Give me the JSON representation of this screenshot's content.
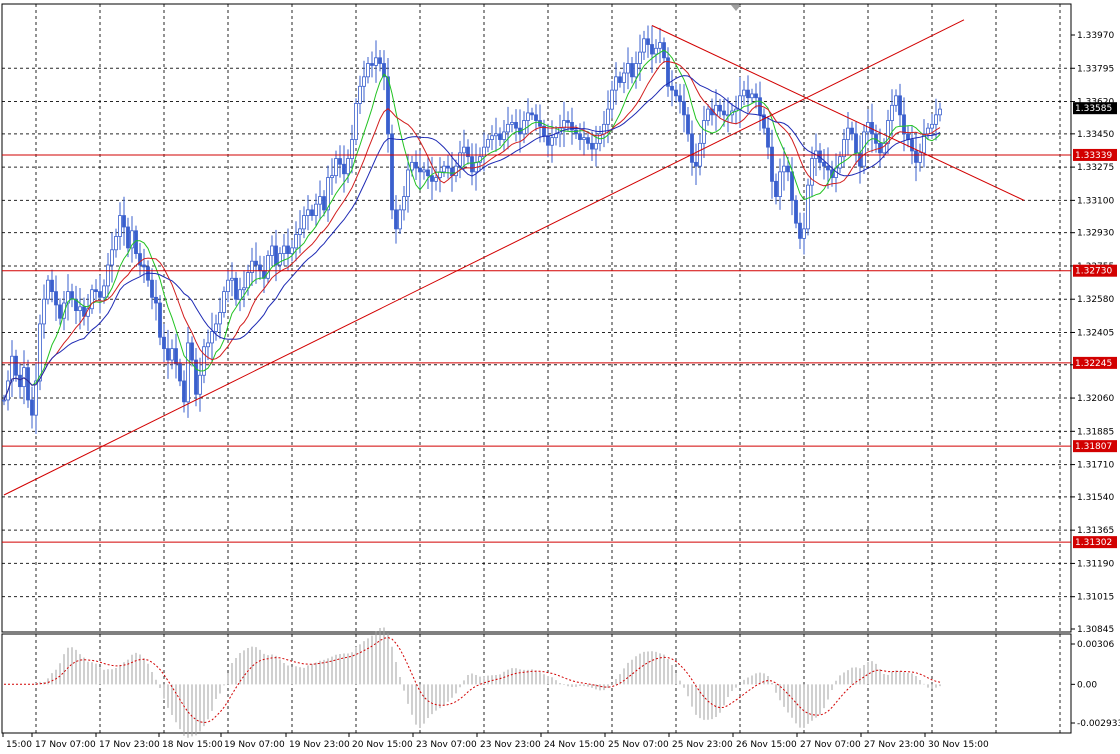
{
  "chart_data": {
    "type": "candlestick",
    "colors": {
      "background": "#ffffff",
      "grid": "#000000",
      "candles": "#3a5fcd",
      "ma_fast": "#22c322",
      "ma_mid": "#d21e1e",
      "ma_slow": "#1e2ab4",
      "level_lines": "#d20000",
      "trend_lines": "#d20000",
      "oscillator_signal": "#d20000",
      "oscillator_hist": "#a0a0a0"
    },
    "price_axis": {
      "min": 1.30845,
      "max": 1.3397,
      "tick_labels": [
        "1.33970",
        "1.33795",
        "1.33620",
        "1.33450",
        "1.33275",
        "1.33100",
        "1.32930",
        "1.32755",
        "1.32580",
        "1.32405",
        "1.32235",
        "1.32060",
        "1.31885",
        "1.31710",
        "1.31540",
        "1.31365",
        "1.31190",
        "1.31015",
        "1.30845"
      ]
    },
    "time_axis": {
      "labels": [
        "15:00",
        "17 Nov 07:00",
        "17 Nov 23:00",
        "18 Nov 15:00",
        "19 Nov 07:00",
        "19 Nov 23:00",
        "20 Nov 15:00",
        "23 Nov 07:00",
        "23 Nov 23:00",
        "24 Nov 15:00",
        "25 Nov 07:00",
        "25 Nov 23:00",
        "26 Nov 15:00",
        "27 Nov 07:00",
        "27 Nov 23:00",
        "30 Nov 15:00"
      ]
    },
    "current_price": "1.33585",
    "levels": [
      {
        "price": 1.33339,
        "label": "1.33339"
      },
      {
        "price": 1.3273,
        "label": "1.32730"
      },
      {
        "price": 1.32245,
        "label": "1.32245"
      },
      {
        "price": 1.31807,
        "label": "1.31807"
      },
      {
        "price": 1.31302,
        "label": "1.31302"
      }
    ],
    "trend_lines": [
      {
        "name": "rising-support",
        "from": {
          "bar": 0,
          "price": 1.3155
        },
        "to": {
          "bar": 240,
          "price": 1.3405
        }
      },
      {
        "name": "falling-resistance",
        "from": {
          "bar": 162,
          "price": 1.3402
        },
        "to": {
          "bar": 255,
          "price": 1.331
        }
      }
    ],
    "oscillator": {
      "tick_labels": [
        "0.00306",
        "0.00",
        "-0.002933"
      ],
      "min": -0.002933,
      "max": 0.00306
    },
    "series": [
      {
        "name": "price",
        "values": [
          1.3205,
          1.3215,
          1.3228,
          1.3218,
          1.3212,
          1.3222,
          1.3205,
          1.3197,
          1.3215,
          1.3245,
          1.3258,
          1.3268,
          1.3262,
          1.3255,
          1.3248,
          1.3256,
          1.3262,
          1.3258,
          1.3252,
          1.3254,
          1.3249,
          1.3253,
          1.3263,
          1.3262,
          1.3259,
          1.3265,
          1.3276,
          1.3284,
          1.3291,
          1.3302,
          1.3296,
          1.3285,
          1.3294,
          1.3282,
          1.3276,
          1.3275,
          1.3268,
          1.3259,
          1.3256,
          1.3238,
          1.3232,
          1.3226,
          1.3232,
          1.3224,
          1.3215,
          1.3204,
          1.3235,
          1.3226,
          1.3208,
          1.3218,
          1.3233,
          1.3235,
          1.3241,
          1.3245,
          1.3251,
          1.3262,
          1.3268,
          1.3269,
          1.3258,
          1.3263,
          1.3264,
          1.3272,
          1.3278,
          1.3276,
          1.3273,
          1.3269,
          1.3281,
          1.3286,
          1.3276,
          1.3282,
          1.3286,
          1.3282,
          1.3285,
          1.3292,
          1.3295,
          1.3302,
          1.3305,
          1.3302,
          1.3308,
          1.3312,
          1.3305,
          1.3322,
          1.3323,
          1.3332,
          1.3329,
          1.3324,
          1.3332,
          1.3342,
          1.3361,
          1.337,
          1.3375,
          1.3382,
          1.3381,
          1.3385,
          1.3382,
          1.3375,
          1.3345,
          1.3305,
          1.3295,
          1.3305,
          1.3312,
          1.3326,
          1.333,
          1.3327,
          1.3325,
          1.3326,
          1.3323,
          1.332,
          1.3322,
          1.3325,
          1.3328,
          1.3327,
          1.3323,
          1.3328,
          1.3335,
          1.3338,
          1.3333,
          1.3325,
          1.333,
          1.3333,
          1.3338,
          1.3342,
          1.3344,
          1.3345,
          1.3342,
          1.3346,
          1.335,
          1.3351,
          1.3348,
          1.3345,
          1.3352,
          1.3356,
          1.3355,
          1.3352,
          1.3349,
          1.3344,
          1.3339,
          1.3343,
          1.3345,
          1.3348,
          1.3352,
          1.3351,
          1.3347,
          1.3345,
          1.3342,
          1.3343,
          1.334,
          1.3337,
          1.334,
          1.3345,
          1.335,
          1.3358,
          1.3368,
          1.3375,
          1.3372,
          1.3377,
          1.3382,
          1.3375,
          1.3382,
          1.3388,
          1.3395,
          1.3392,
          1.3387,
          1.339,
          1.3393,
          1.3385,
          1.337,
          1.3368,
          1.3365,
          1.3362,
          1.3355,
          1.3345,
          1.333,
          1.3328,
          1.334,
          1.3352,
          1.3358,
          1.3355,
          1.336,
          1.3357,
          1.3355,
          1.3355,
          1.3357,
          1.3358,
          1.3365,
          1.3368,
          1.3364,
          1.3366,
          1.3364,
          1.3355,
          1.3348,
          1.3338,
          1.332,
          1.3312,
          1.3325,
          1.3328,
          1.3325,
          1.331,
          1.3298,
          1.329,
          1.3295,
          1.3318,
          1.3332,
          1.3336,
          1.333,
          1.3328,
          1.3326,
          1.3322,
          1.3327,
          1.3333,
          1.3342,
          1.3348,
          1.3345,
          1.3335,
          1.3328,
          1.3346,
          1.3351,
          1.3345,
          1.334,
          1.3335,
          1.334,
          1.3352,
          1.336,
          1.3365,
          1.3355,
          1.3345,
          1.3342,
          1.3336,
          1.333,
          1.3335,
          1.3345,
          1.3348,
          1.335,
          1.3355,
          1.3358
        ]
      }
    ]
  }
}
